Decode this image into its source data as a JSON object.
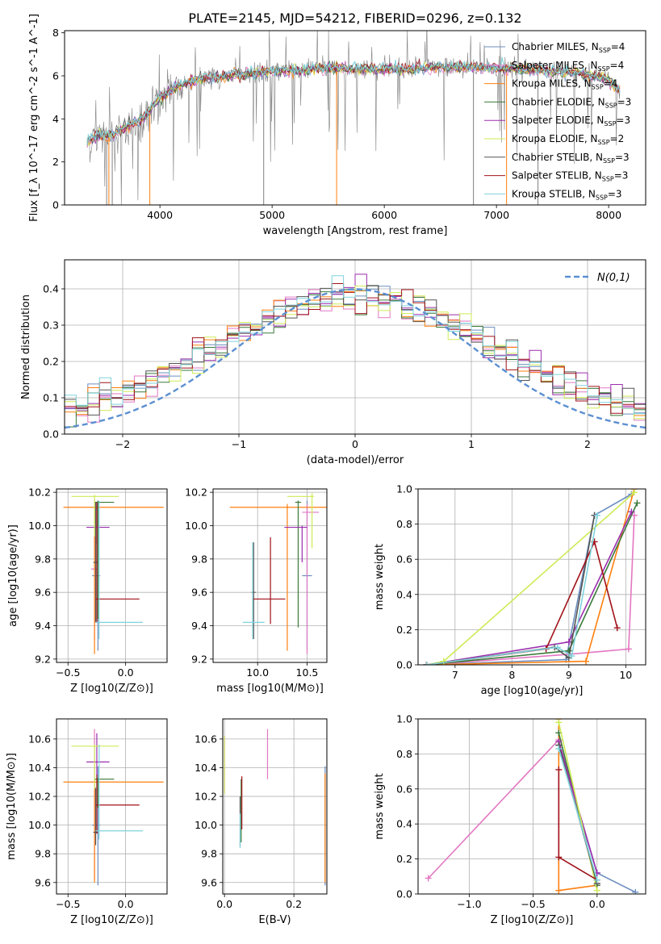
{
  "figure_title": "PLATE=2145, MJD=54212, FIBERID=0296, z=0.132",
  "series_names": [
    "Chabrier MILES",
    "Salpeter MILES",
    "Kroupa MILES",
    "Chabrier ELODIE",
    "Salpeter ELODIE",
    "Kroupa ELODIE",
    "Chabrier STELIB",
    "Salpeter STELIB",
    "Kroupa STELIB"
  ],
  "nssp": [
    4,
    4,
    4,
    3,
    3,
    2,
    3,
    3,
    3
  ],
  "colors": {
    "data": "#808080",
    "series": [
      "#6C8EBF",
      "#E377C2",
      "#FF7F0E",
      "#3A7A3A",
      "#9B2FAE",
      "#CDEB56",
      "#555555",
      "#A0121A",
      "#7FD3DC"
    ],
    "gauss": "#5B8FD1"
  },
  "chart_data": [
    {
      "type": "line",
      "xlabel": "wavelength [Angstrom, rest frame]",
      "ylabel": "Flux [f_λ 10^-17 erg cm^-2 s^-1 A^-1]",
      "xlim": [
        3150,
        8330
      ],
      "ylim": [
        0,
        8.1
      ],
      "xticks": [
        4000,
        5000,
        6000,
        7000,
        8000
      ],
      "yticks": [
        0,
        2,
        4,
        6,
        8
      ],
      "legend_position": "top-right",
      "spectrum_anchor_points": [
        [
          3350,
          2.9
        ],
        [
          3450,
          3.25
        ],
        [
          3550,
          3.2
        ],
        [
          3700,
          3.6
        ],
        [
          3850,
          4.0
        ],
        [
          3950,
          4.7
        ],
        [
          4050,
          5.2
        ],
        [
          4200,
          5.6
        ],
        [
          4400,
          5.9
        ],
        [
          4700,
          6.05
        ],
        [
          5000,
          6.2
        ],
        [
          5300,
          6.3
        ],
        [
          5600,
          6.35
        ],
        [
          5900,
          6.3
        ],
        [
          6200,
          6.3
        ],
        [
          6500,
          6.4
        ],
        [
          6800,
          6.4
        ],
        [
          7100,
          6.35
        ],
        [
          7400,
          6.25
        ],
        [
          7700,
          6.15
        ],
        [
          8000,
          5.8
        ],
        [
          8100,
          5.3
        ]
      ],
      "wavelength_range": [
        3350,
        8100
      ]
    },
    {
      "type": "line",
      "xlabel": "(data-model)/error",
      "ylabel": "Normed distribution",
      "xlim": [
        -2.5,
        2.5
      ],
      "ylim": [
        0,
        0.48
      ],
      "xticks": [
        -2,
        -1,
        0,
        1,
        2
      ],
      "yticks": [
        0.0,
        0.1,
        0.2,
        0.3,
        0.4
      ],
      "grid": true,
      "legend": "N(0,1)",
      "legend_position": "top-right",
      "histogram_bin_width": 0.1,
      "histogram_x_range": [
        -2.5,
        2.5
      ],
      "gaussian": {
        "mean": 0,
        "sigma": 1
      }
    },
    {
      "type": "scatter",
      "xlabel": "Z [log10(Z/Z⊙)]",
      "ylabel": "age  [log10(age/yr)]",
      "xlim": [
        -0.6,
        0.36
      ],
      "ylim": [
        9.18,
        10.22
      ],
      "xticks": [
        -0.5,
        0.0
      ],
      "yticks": [
        9.2,
        9.4,
        9.6,
        9.8,
        10.0,
        10.2
      ],
      "grid": true,
      "points": [
        {
          "x": -0.24,
          "y": 9.7,
          "xerr": [
            0.05,
            0.02
          ],
          "yerr": [
            0.45,
            0.45
          ]
        },
        {
          "x": -0.27,
          "y": 9.74,
          "xerr": [
            0.03,
            0.03
          ],
          "yerr": [
            0.43,
            0.42
          ]
        },
        {
          "x": -0.27,
          "y": 10.11,
          "xerr": [
            0.27,
            0.6
          ],
          "yerr": [
            0.88,
            0.04
          ]
        },
        {
          "x": -0.24,
          "y": 10.14,
          "xerr": [
            0.03,
            0.14
          ],
          "yerr": [
            0.7,
            0.01
          ]
        },
        {
          "x": -0.25,
          "y": 9.99,
          "xerr": [
            0.09,
            0.11
          ],
          "yerr": [
            0.1,
            0.15
          ]
        },
        {
          "x": -0.27,
          "y": 10.175,
          "xerr": [
            0.2,
            0.21
          ],
          "yerr": [
            0.24,
            0.01
          ]
        },
        {
          "x": -0.26,
          "y": 9.78,
          "xerr": [
            0.02,
            0.02
          ],
          "yerr": [
            0.36,
            0.36
          ]
        },
        {
          "x": -0.25,
          "y": 9.56,
          "xerr": [
            0.01,
            0.37
          ],
          "yerr": [
            0.14,
            0.58
          ]
        },
        {
          "x": -0.23,
          "y": 9.42,
          "xerr": [
            0.03,
            0.38
          ],
          "yerr": [
            0.1,
            0.73
          ]
        }
      ]
    },
    {
      "type": "scatter",
      "xlabel": "mass [log10(M/M⊙)]",
      "ylabel": "",
      "xlim": [
        9.55,
        10.7
      ],
      "ylim": [
        9.18,
        10.22
      ],
      "xticks": [
        10.0,
        10.5
      ],
      "yticks": [
        9.2,
        9.4,
        9.6,
        9.8,
        10.0,
        10.2
      ],
      "grid": true,
      "points": [
        {
          "x": 10.5,
          "y": 9.7,
          "xerr": [
            0.05,
            0.05
          ],
          "yerr": [
            0.45,
            0.45
          ]
        },
        {
          "x": 10.5,
          "y": 10.08,
          "xerr": [
            0.05,
            0.12
          ],
          "yerr": [
            0.85,
            0.05
          ]
        },
        {
          "x": 10.3,
          "y": 10.11,
          "xerr": [
            0.58,
            0.66
          ],
          "yerr": [
            0.86,
            0.02
          ]
        },
        {
          "x": 10.41,
          "y": 10.14,
          "xerr": [
            0.03,
            0.03
          ],
          "yerr": [
            0.75,
            0.01
          ]
        },
        {
          "x": 10.45,
          "y": 9.99,
          "xerr": [
            0.18,
            0.05
          ],
          "yerr": [
            0.21,
            0.01
          ]
        },
        {
          "x": 10.55,
          "y": 10.175,
          "xerr": [
            0.25,
            0.02
          ],
          "yerr": [
            0.31,
            0.02
          ]
        },
        {
          "x": 9.96,
          "y": 9.6,
          "xerr": [
            0.02,
            0.02
          ],
          "yerr": [
            0.28,
            0.3
          ]
        },
        {
          "x": 10.13,
          "y": 9.56,
          "xerr": [
            0.18,
            0.15
          ],
          "yerr": [
            0.15,
            0.37
          ]
        },
        {
          "x": 9.95,
          "y": 9.42,
          "xerr": [
            0.1,
            0.12
          ],
          "yerr": [
            0.1,
            0.48
          ]
        }
      ]
    },
    {
      "type": "line",
      "xlabel": "age  [log10(age/yr)]",
      "ylabel": "mass weight",
      "xlim": [
        6.35,
        10.35
      ],
      "ylim": [
        0,
        1
      ],
      "xticks": [
        7,
        8,
        9,
        10
      ],
      "yticks": [
        0.0,
        0.2,
        0.4,
        0.6,
        0.8,
        1.0
      ],
      "grid": true,
      "series": [
        {
          "x": [
            6.5,
            8.95,
            9.45,
            10.1
          ],
          "y": [
            0,
            0.03,
            0.85,
            0.97
          ]
        },
        {
          "x": [
            6.5,
            9.0,
            10.05,
            10.15
          ],
          "y": [
            0,
            0.06,
            0.09,
            0.85
          ]
        },
        {
          "x": [
            6.5,
            9.3,
            10.15
          ],
          "y": [
            0,
            0.02,
            1.0
          ]
        },
        {
          "x": [
            6.5,
            9.0,
            10.2
          ],
          "y": [
            0,
            0.08,
            0.92
          ]
        },
        {
          "x": [
            6.5,
            9.0,
            10.1
          ],
          "y": [
            0,
            0.13,
            0.87
          ]
        },
        {
          "x": [
            6.5,
            6.8,
            10.15
          ],
          "y": [
            0,
            0.02,
            0.98
          ]
        },
        {
          "x": [
            6.5,
            8.75,
            9.0,
            9.45
          ],
          "y": [
            0,
            0.1,
            0.04,
            0.85
          ]
        },
        {
          "x": [
            6.5,
            8.6,
            9.45,
            9.85
          ],
          "y": [
            0,
            0.09,
            0.7,
            0.21
          ]
        },
        {
          "x": [
            6.5,
            8.8,
            9.05,
            9.5
          ],
          "y": [
            0,
            0.1,
            0.05,
            0.85
          ]
        }
      ]
    },
    {
      "type": "scatter",
      "xlabel": "Z [log10(Z/Z⊙)]",
      "ylabel": "mass [log10(M/M⊙)]",
      "xlim": [
        -0.6,
        0.36
      ],
      "ylim": [
        9.52,
        10.74
      ],
      "xticks": [
        -0.5,
        0.0
      ],
      "yticks": [
        9.6,
        9.8,
        10.0,
        10.2,
        10.4,
        10.6
      ],
      "grid": true,
      "points": [
        {
          "x": -0.24,
          "y": 10.0,
          "xerr": [
            0.05,
            0.02
          ],
          "yerr": [
            0.42,
            0.41
          ]
        },
        {
          "x": -0.27,
          "y": 10.3,
          "xerr": [
            0.03,
            0.03
          ],
          "yerr": [
            0.68,
            0.37
          ]
        },
        {
          "x": -0.27,
          "y": 10.3,
          "xerr": [
            0.27,
            0.6
          ],
          "yerr": [
            0.7,
            0.02
          ]
        },
        {
          "x": -0.24,
          "y": 10.32,
          "xerr": [
            0.03,
            0.14
          ],
          "yerr": [
            0.2,
            0.01
          ]
        },
        {
          "x": -0.25,
          "y": 10.44,
          "xerr": [
            0.09,
            0.11
          ],
          "yerr": [
            0.1,
            0.2
          ]
        },
        {
          "x": -0.27,
          "y": 10.55,
          "xerr": [
            0.2,
            0.21
          ],
          "yerr": [
            0.3,
            0.01
          ]
        },
        {
          "x": -0.26,
          "y": 9.95,
          "xerr": [
            0.02,
            0.02
          ],
          "yerr": [
            0.09,
            0.31
          ]
        },
        {
          "x": -0.25,
          "y": 10.14,
          "xerr": [
            0.01,
            0.37
          ],
          "yerr": [
            0.2,
            0.21
          ]
        },
        {
          "x": -0.23,
          "y": 9.96,
          "xerr": [
            0.03,
            0.38
          ],
          "yerr": [
            0.06,
            0.6
          ]
        }
      ]
    },
    {
      "type": "scatter",
      "xlabel": "E(B-V)",
      "ylabel": "",
      "xlim": [
        -0.005,
        0.295
      ],
      "ylim": [
        9.52,
        10.74
      ],
      "xticks": [
        0.0,
        0.2
      ],
      "yticks": [
        9.6,
        9.8,
        10.0,
        10.2,
        10.4,
        10.6
      ],
      "grid": true,
      "points": [
        {
          "x": 0.29,
          "y": 10.0,
          "yerr": [
            0.42,
            0.41
          ]
        },
        {
          "x": 0.124,
          "y": 10.5,
          "yerr": [
            0.18,
            0.17
          ]
        },
        {
          "x": 0.29,
          "y": 10.0,
          "yerr": [
            0.4,
            0.36
          ]
        },
        {
          "x": 0.048,
          "y": 10.1,
          "yerr": [
            0.22,
            0.22
          ]
        },
        {
          "x": 0.0,
          "y": 10.42,
          "yerr": [
            0.2,
            0.2
          ]
        },
        {
          "x": 0.0,
          "y": 10.42,
          "yerr": [
            0.2,
            0.2
          ]
        },
        {
          "x": 0.045,
          "y": 10.0,
          "yerr": [
            0.15,
            0.2
          ]
        },
        {
          "x": 0.05,
          "y": 10.1,
          "yerr": [
            0.13,
            0.24
          ]
        },
        {
          "x": 0.045,
          "y": 9.92,
          "yerr": [
            0.08,
            0.16
          ]
        }
      ]
    },
    {
      "type": "line",
      "xlabel": "Z [log10(Z/Z⊙)]",
      "ylabel": "mass weight",
      "xlim": [
        -1.4,
        0.38
      ],
      "ylim": [
        0,
        1
      ],
      "xticks": [
        -1.0,
        -0.5,
        0.0
      ],
      "yticks": [
        0.0,
        0.2,
        0.4,
        0.6,
        0.8,
        1.0
      ],
      "grid": true,
      "series": [
        {
          "x": [
            0.3,
            0.0,
            -0.3
          ],
          "y": [
            0.01,
            0.12,
            0.85
          ]
        },
        {
          "x": [
            -1.32,
            -0.3,
            0.0
          ],
          "y": [
            0.09,
            0.88,
            0.06
          ]
        },
        {
          "x": [
            -0.3,
            -0.3,
            0.0
          ],
          "y": [
            1.0,
            0.02,
            0.05
          ]
        },
        {
          "x": [
            -0.3,
            0.0
          ],
          "y": [
            0.92,
            0.05
          ]
        },
        {
          "x": [
            -0.3,
            0.0
          ],
          "y": [
            0.87,
            0.12
          ]
        },
        {
          "x": [
            -0.3,
            0.0
          ],
          "y": [
            0.98,
            0.02
          ]
        },
        {
          "x": [
            -0.3,
            0.0
          ],
          "y": [
            0.85,
            0.06
          ]
        },
        {
          "x": [
            -0.3,
            -0.3,
            0.0
          ],
          "y": [
            0.71,
            0.21,
            0.08
          ]
        },
        {
          "x": [
            -0.3,
            0.0
          ],
          "y": [
            0.83,
            0.08
          ]
        }
      ]
    }
  ]
}
